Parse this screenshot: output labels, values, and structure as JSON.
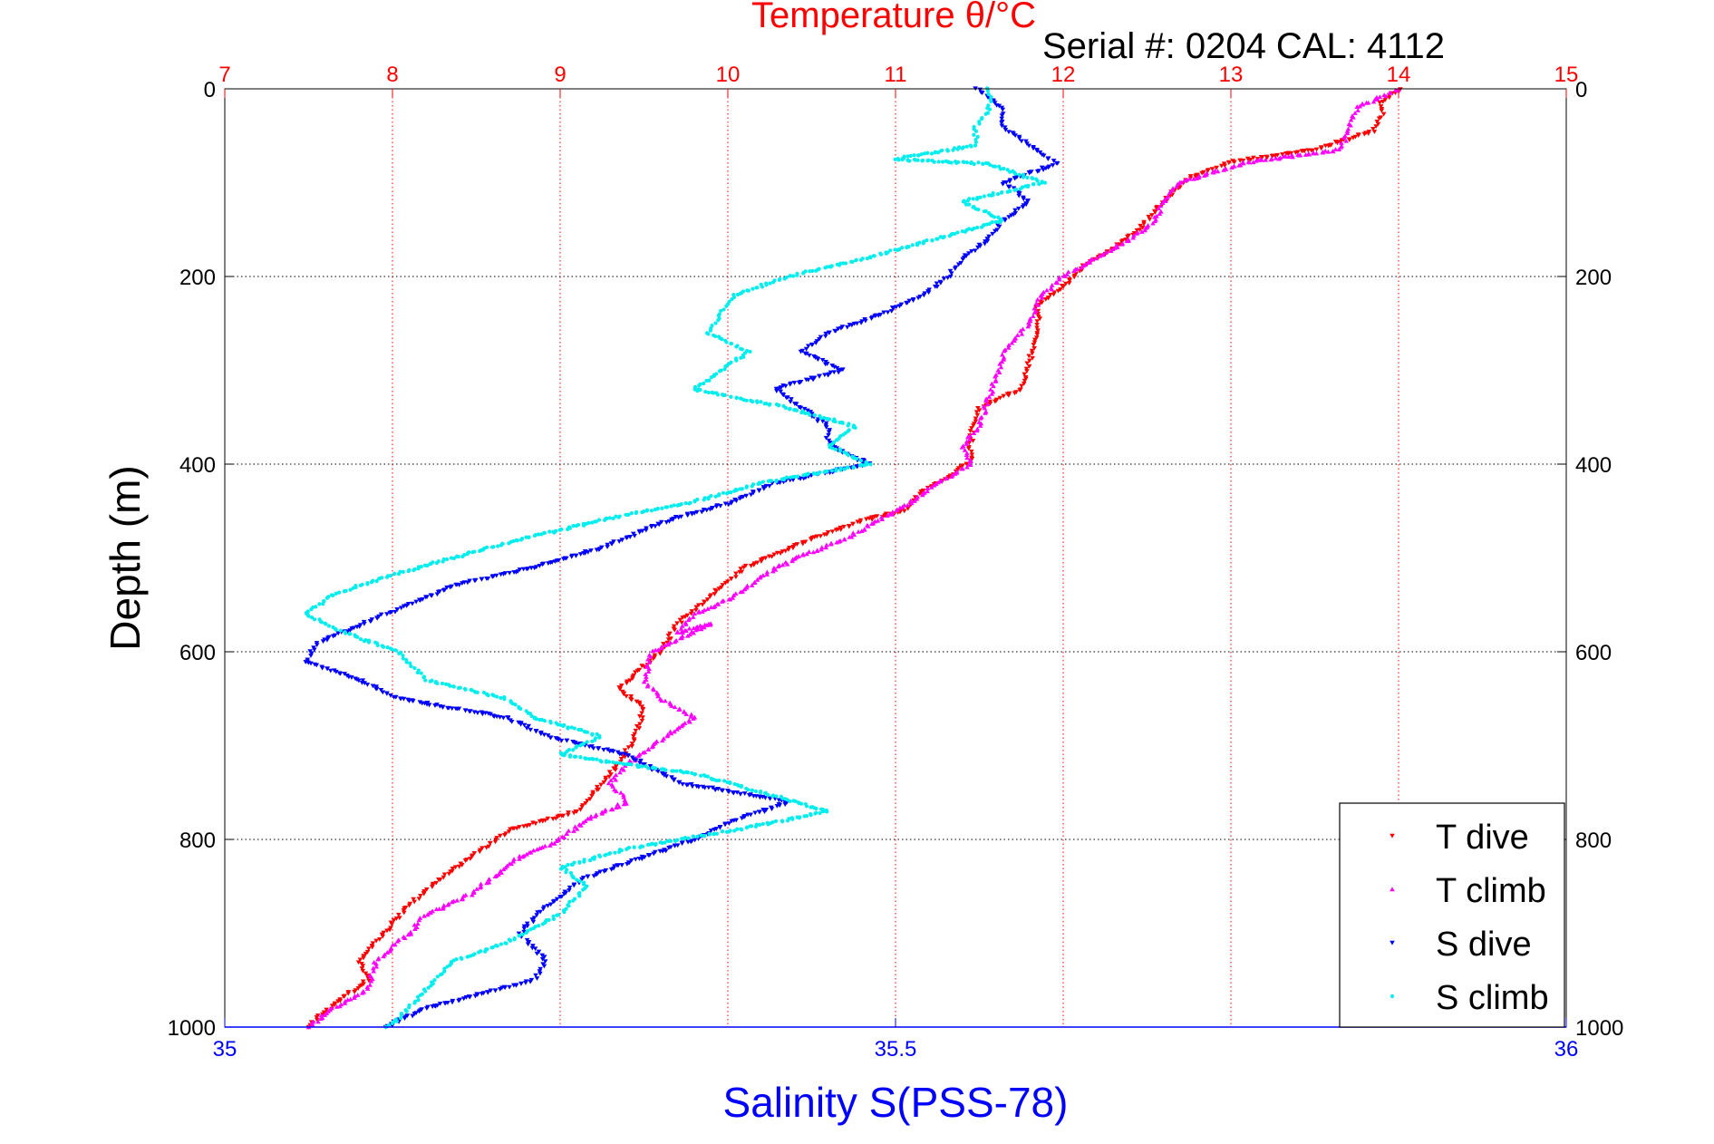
{
  "chart_data": {
    "type": "scatter",
    "title": "Temperature θ/°C",
    "subtitle": "Serial #: 0204  CAL: 4112",
    "ylabel": "Depth (m)",
    "xlabel_bottom": "Salinity S(PSS-78)",
    "x_top": {
      "label": "Temperature θ/°C",
      "lim": [
        7,
        15
      ],
      "ticks": [
        7,
        8,
        9,
        10,
        11,
        12,
        13,
        14,
        15
      ]
    },
    "x_bottom": {
      "label": "Salinity S(PSS-78)",
      "lim": [
        35,
        36
      ],
      "ticks": [
        "35",
        "35.5",
        "36"
      ]
    },
    "y": {
      "lim": [
        0,
        1000
      ],
      "reversed": true,
      "ticks": [
        0,
        200,
        400,
        600,
        800,
        1000
      ]
    },
    "grid": "dotted",
    "legend_position": "bottom-right",
    "colors": {
      "temperature_axis": "#ff0000",
      "salinity_axis": "#0000ff",
      "frame": "#000000"
    },
    "series": [
      {
        "name": "T dive",
        "axis": "temperature",
        "color": "#ff0000",
        "marker": "triangle-down",
        "points": [
          [
            14.0,
            0
          ],
          [
            13.9,
            15
          ],
          [
            13.9,
            30
          ],
          [
            13.85,
            45
          ],
          [
            13.5,
            65
          ],
          [
            13.0,
            78
          ],
          [
            12.75,
            95
          ],
          [
            12.65,
            110
          ],
          [
            12.55,
            130
          ],
          [
            12.45,
            150
          ],
          [
            12.3,
            170
          ],
          [
            12.15,
            185
          ],
          [
            12.0,
            210
          ],
          [
            11.85,
            230
          ],
          [
            11.85,
            260
          ],
          [
            11.8,
            290
          ],
          [
            11.75,
            320
          ],
          [
            11.5,
            340
          ],
          [
            11.45,
            370
          ],
          [
            11.45,
            395
          ],
          [
            11.35,
            410
          ],
          [
            11.15,
            430
          ],
          [
            11.05,
            450
          ],
          [
            10.8,
            460
          ],
          [
            10.5,
            480
          ],
          [
            10.1,
            510
          ],
          [
            9.9,
            540
          ],
          [
            9.7,
            570
          ],
          [
            9.6,
            600
          ],
          [
            9.5,
            615
          ],
          [
            9.35,
            640
          ],
          [
            9.5,
            660
          ],
          [
            9.45,
            690
          ],
          [
            9.35,
            720
          ],
          [
            9.2,
            750
          ],
          [
            9.1,
            770
          ],
          [
            8.7,
            790
          ],
          [
            8.5,
            815
          ],
          [
            8.3,
            840
          ],
          [
            8.1,
            870
          ],
          [
            7.95,
            900
          ],
          [
            7.8,
            930
          ],
          [
            7.85,
            950
          ],
          [
            7.7,
            970
          ],
          [
            7.55,
            990
          ],
          [
            7.5,
            1000
          ]
        ]
      },
      {
        "name": "T climb",
        "axis": "temperature",
        "color": "#ff00ff",
        "marker": "triangle-up",
        "points": [
          [
            14.0,
            0
          ],
          [
            13.75,
            20
          ],
          [
            13.7,
            45
          ],
          [
            13.65,
            65
          ],
          [
            13.1,
            78
          ],
          [
            12.7,
            100
          ],
          [
            12.6,
            120
          ],
          [
            12.55,
            140
          ],
          [
            12.4,
            160
          ],
          [
            12.2,
            180
          ],
          [
            12.0,
            200
          ],
          [
            11.85,
            225
          ],
          [
            11.8,
            250
          ],
          [
            11.65,
            280
          ],
          [
            11.6,
            310
          ],
          [
            11.55,
            330
          ],
          [
            11.5,
            360
          ],
          [
            11.4,
            380
          ],
          [
            11.45,
            400
          ],
          [
            11.25,
            420
          ],
          [
            11.1,
            440
          ],
          [
            10.9,
            460
          ],
          [
            10.7,
            480
          ],
          [
            10.4,
            500
          ],
          [
            10.2,
            520
          ],
          [
            10.0,
            545
          ],
          [
            9.8,
            560
          ],
          [
            9.7,
            580
          ],
          [
            9.9,
            570
          ],
          [
            9.55,
            600
          ],
          [
            9.5,
            630
          ],
          [
            9.6,
            650
          ],
          [
            9.8,
            670
          ],
          [
            9.55,
            700
          ],
          [
            9.4,
            720
          ],
          [
            9.3,
            740
          ],
          [
            9.4,
            760
          ],
          [
            9.15,
            780
          ],
          [
            9.0,
            800
          ],
          [
            8.75,
            820
          ],
          [
            8.6,
            840
          ],
          [
            8.45,
            860
          ],
          [
            8.2,
            880
          ],
          [
            8.1,
            900
          ],
          [
            7.9,
            930
          ],
          [
            7.85,
            960
          ],
          [
            7.65,
            980
          ],
          [
            7.5,
            1000
          ]
        ]
      },
      {
        "name": "S dive",
        "axis": "salinity",
        "color": "#0000ff",
        "marker": "triangle-down",
        "points": [
          [
            35.56,
            0
          ],
          [
            35.58,
            20
          ],
          [
            35.58,
            40
          ],
          [
            35.6,
            60
          ],
          [
            35.62,
            80
          ],
          [
            35.58,
            100
          ],
          [
            35.6,
            120
          ],
          [
            35.58,
            140
          ],
          [
            35.57,
            160
          ],
          [
            35.55,
            180
          ],
          [
            35.54,
            200
          ],
          [
            35.52,
            220
          ],
          [
            35.49,
            240
          ],
          [
            35.45,
            260
          ],
          [
            35.43,
            280
          ],
          [
            35.46,
            300
          ],
          [
            35.41,
            320
          ],
          [
            35.43,
            340
          ],
          [
            35.45,
            360
          ],
          [
            35.45,
            380
          ],
          [
            35.48,
            400
          ],
          [
            35.41,
            420
          ],
          [
            35.38,
            440
          ],
          [
            35.33,
            460
          ],
          [
            35.28,
            490
          ],
          [
            35.23,
            510
          ],
          [
            35.17,
            530
          ],
          [
            35.12,
            560
          ],
          [
            35.07,
            590
          ],
          [
            35.06,
            610
          ],
          [
            35.1,
            630
          ],
          [
            35.13,
            650
          ],
          [
            35.21,
            670
          ],
          [
            35.24,
            690
          ],
          [
            35.3,
            710
          ],
          [
            35.34,
            740
          ],
          [
            35.42,
            760
          ],
          [
            35.38,
            780
          ],
          [
            35.35,
            800
          ],
          [
            35.31,
            820
          ],
          [
            35.27,
            840
          ],
          [
            35.24,
            870
          ],
          [
            35.22,
            900
          ],
          [
            35.24,
            930
          ],
          [
            35.23,
            950
          ],
          [
            35.15,
            980
          ],
          [
            35.12,
            1000
          ]
        ]
      },
      {
        "name": "S climb",
        "axis": "salinity",
        "color": "#00eeee",
        "marker": "point",
        "points": [
          [
            35.57,
            0
          ],
          [
            35.57,
            20
          ],
          [
            35.56,
            40
          ],
          [
            35.56,
            60
          ],
          [
            35.5,
            75
          ],
          [
            35.57,
            80
          ],
          [
            35.61,
            100
          ],
          [
            35.55,
            120
          ],
          [
            35.58,
            140
          ],
          [
            35.53,
            160
          ],
          [
            35.48,
            180
          ],
          [
            35.42,
            200
          ],
          [
            35.38,
            220
          ],
          [
            35.37,
            240
          ],
          [
            35.36,
            260
          ],
          [
            35.39,
            280
          ],
          [
            35.37,
            300
          ],
          [
            35.35,
            320
          ],
          [
            35.42,
            340
          ],
          [
            35.47,
            360
          ],
          [
            35.45,
            380
          ],
          [
            35.48,
            400
          ],
          [
            35.4,
            420
          ],
          [
            35.35,
            440
          ],
          [
            35.28,
            460
          ],
          [
            35.22,
            480
          ],
          [
            35.17,
            500
          ],
          [
            35.12,
            520
          ],
          [
            35.08,
            540
          ],
          [
            35.06,
            560
          ],
          [
            35.09,
            580
          ],
          [
            35.13,
            600
          ],
          [
            35.15,
            630
          ],
          [
            35.21,
            650
          ],
          [
            35.23,
            670
          ],
          [
            35.28,
            690
          ],
          [
            35.25,
            710
          ],
          [
            35.35,
            730
          ],
          [
            35.4,
            750
          ],
          [
            35.45,
            770
          ],
          [
            35.38,
            790
          ],
          [
            35.3,
            810
          ],
          [
            35.25,
            830
          ],
          [
            35.27,
            850
          ],
          [
            35.25,
            880
          ],
          [
            35.21,
            910
          ],
          [
            35.17,
            930
          ],
          [
            35.15,
            960
          ],
          [
            35.13,
            990
          ],
          [
            35.12,
            1000
          ]
        ]
      }
    ]
  }
}
